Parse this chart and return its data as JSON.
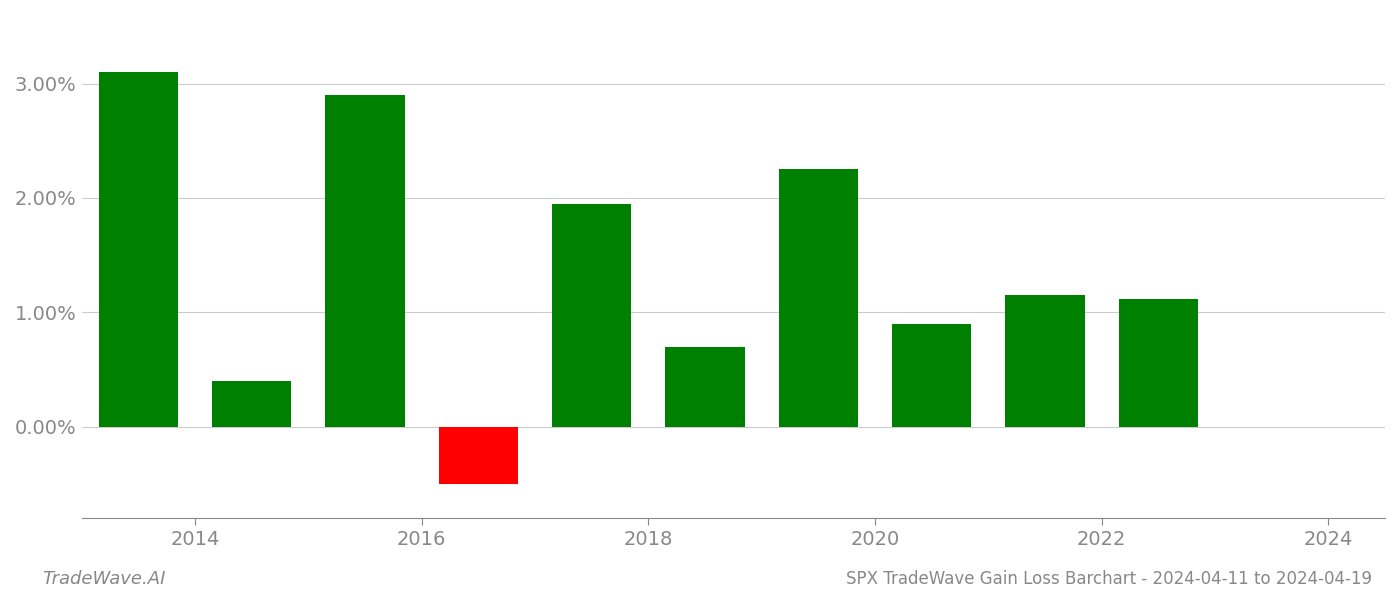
{
  "years": [
    2013.5,
    2014.5,
    2015.5,
    2016.5,
    2017.5,
    2018.5,
    2019.5,
    2020.5,
    2021.5,
    2022.5
  ],
  "values": [
    0.031,
    0.004,
    0.029,
    -0.005,
    0.0195,
    0.007,
    0.0225,
    0.009,
    0.0115,
    0.0112
  ],
  "colors": [
    "#008000",
    "#008000",
    "#008000",
    "#ff0000",
    "#008000",
    "#008000",
    "#008000",
    "#008000",
    "#008000",
    "#008000"
  ],
  "title": "SPX TradeWave Gain Loss Barchart - 2024-04-11 to 2024-04-19",
  "watermark": "TradeWave.AI",
  "ytick_values": [
    0.0,
    0.01,
    0.02,
    0.03
  ],
  "xtick_values": [
    2014,
    2016,
    2018,
    2020,
    2022,
    2024
  ],
  "xlim": [
    2013.0,
    2024.5
  ],
  "ylim": [
    -0.008,
    0.036
  ],
  "background_color": "#ffffff",
  "grid_color": "#cccccc",
  "axis_color": "#888888",
  "bar_width": 0.7
}
